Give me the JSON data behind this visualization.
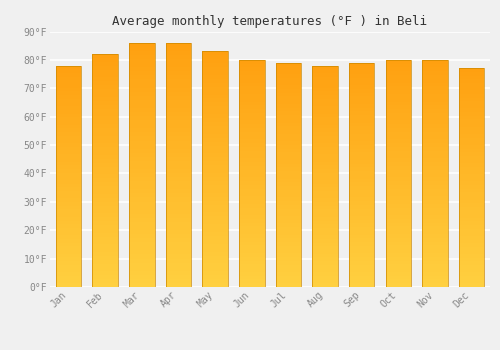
{
  "title": "Average monthly temperatures (°F ) in Beli",
  "months": [
    "Jan",
    "Feb",
    "Mar",
    "Apr",
    "May",
    "Jun",
    "Jul",
    "Aug",
    "Sep",
    "Oct",
    "Nov",
    "Dec"
  ],
  "values": [
    78,
    82,
    86,
    86,
    83,
    80,
    79,
    78,
    79,
    80,
    80,
    77
  ],
  "bar_color_bottom": "#FFD040",
  "bar_color_top": "#FFA010",
  "bar_edge_color": "#CC8800",
  "ylim": [
    0,
    90
  ],
  "yticks": [
    0,
    10,
    20,
    30,
    40,
    50,
    60,
    70,
    80,
    90
  ],
  "ytick_labels": [
    "0°F",
    "10°F",
    "20°F",
    "30°F",
    "40°F",
    "50°F",
    "60°F",
    "70°F",
    "80°F",
    "90°F"
  ],
  "background_color": "#f0f0f0",
  "grid_color": "#ffffff",
  "title_fontsize": 9,
  "tick_fontsize": 7,
  "bar_edge_width": 0.5,
  "bar_width": 0.7
}
